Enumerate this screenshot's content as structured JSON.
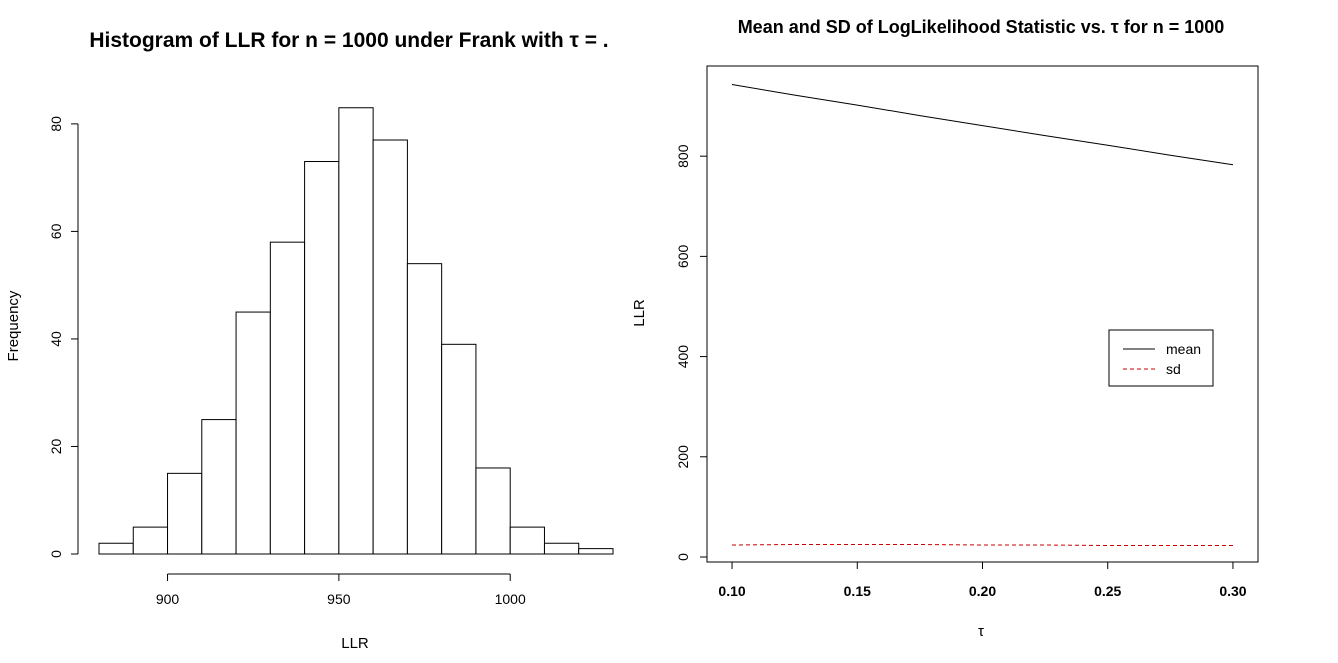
{
  "chart_data": [
    {
      "type": "bar",
      "title": "Histogram of LLR for n = 1000 under Frank with τ = .",
      "xlabel": "LLR",
      "ylabel": "Frequency",
      "bin_edges": [
        880,
        890,
        900,
        910,
        920,
        930,
        940,
        950,
        960,
        970,
        980,
        990,
        1000,
        1010,
        1020,
        1030
      ],
      "values": [
        2,
        5,
        15,
        25,
        45,
        58,
        73,
        83,
        77,
        54,
        39,
        16,
        5,
        2,
        1
      ],
      "xlim": [
        880,
        1030
      ],
      "ylim": [
        0,
        85
      ],
      "x_ticks": [
        "900",
        "950",
        "1000"
      ],
      "y_ticks": [
        "0",
        "20",
        "40",
        "60",
        "80"
      ],
      "grid": false
    },
    {
      "type": "line",
      "title": "Mean and SD of LogLikelihood Statistic vs. τ for n = 1000",
      "xlabel": "τ",
      "ylabel": "LLR",
      "x": [
        0.1,
        0.125,
        0.15,
        0.175,
        0.2,
        0.225,
        0.25,
        0.275,
        0.3
      ],
      "series": [
        {
          "name": "mean",
          "color": "#000000",
          "dash": "solid",
          "values": [
            943,
            922,
            902,
            881,
            861,
            841,
            822,
            802,
            783
          ]
        },
        {
          "name": "sd",
          "color": "#cc0000",
          "dash": "dashed",
          "values": [
            24,
            25,
            25,
            25,
            24,
            24,
            23,
            23,
            23
          ]
        }
      ],
      "xlim": [
        0.09,
        0.31
      ],
      "ylim": [
        -10,
        980
      ],
      "x_ticks": [
        "0.10",
        "0.15",
        "0.20",
        "0.25",
        "0.30"
      ],
      "y_ticks": [
        "0",
        "200",
        "400",
        "600",
        "800"
      ],
      "legend_placement": "right-middle",
      "grid": false
    }
  ]
}
